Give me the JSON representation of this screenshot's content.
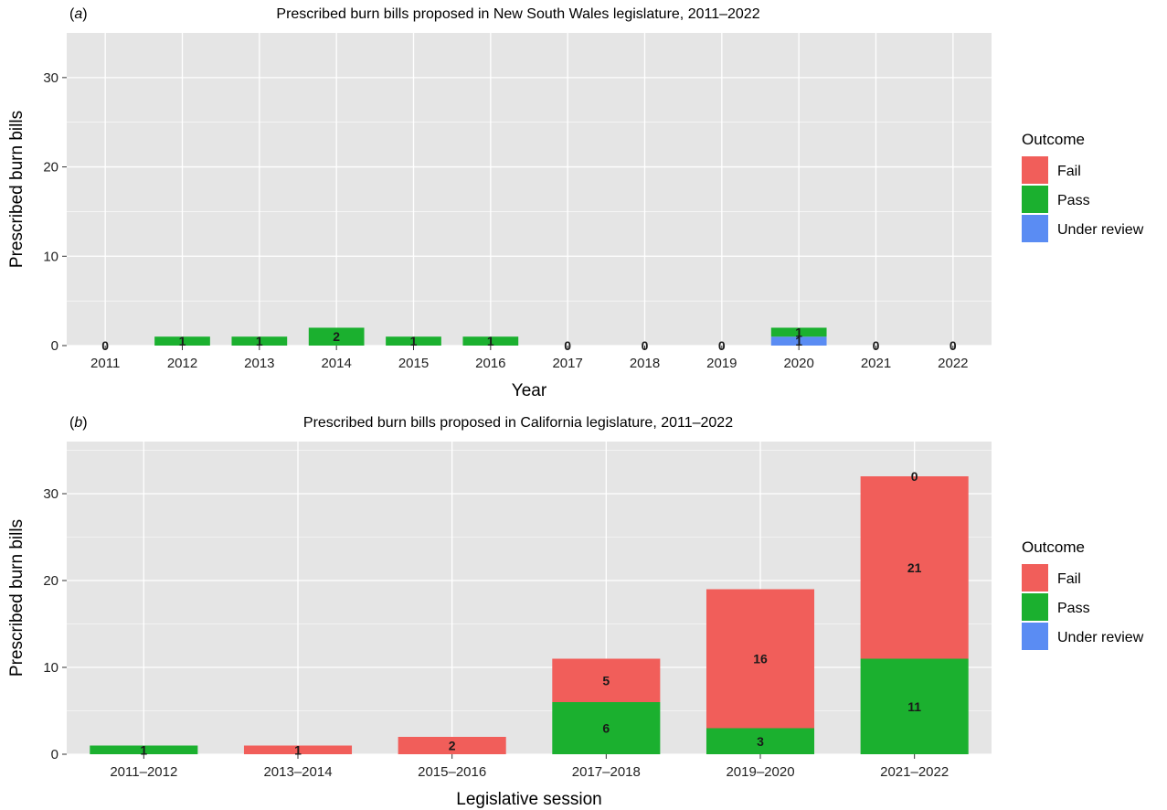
{
  "colors": {
    "panel_bg": "#e5e5e5",
    "grid": "#ffffff",
    "Fail": "#f15e5a",
    "Pass": "#1bb02f",
    "Under review": "#5a8cf3"
  },
  "chart_data": [
    {
      "type": "bar",
      "stacked": true,
      "panel_letter": "a",
      "title": "Prescribed burn bills proposed in New South Wales legislature, 2011–2022",
      "xlabel": "Year",
      "ylabel": "Prescribed burn bills",
      "ylim": [
        0,
        35
      ],
      "yticks": [
        0,
        10,
        20,
        30
      ],
      "grid": true,
      "legend": {
        "title": "Outcome",
        "position": "right",
        "entries": [
          "Fail",
          "Pass",
          "Under review"
        ]
      },
      "categories": [
        "2011",
        "2012",
        "2013",
        "2014",
        "2015",
        "2016",
        "2017",
        "2018",
        "2019",
        "2020",
        "2021",
        "2022"
      ],
      "series": [
        {
          "name": "Fail",
          "values": [
            0,
            0,
            0,
            0,
            0,
            0,
            0,
            0,
            0,
            0,
            0,
            0
          ]
        },
        {
          "name": "Pass",
          "values": [
            0,
            1,
            1,
            2,
            1,
            1,
            0,
            0,
            0,
            1,
            0,
            0
          ]
        },
        {
          "name": "Under review",
          "values": [
            0,
            0,
            0,
            0,
            0,
            0,
            0,
            0,
            0,
            1,
            0,
            0
          ]
        }
      ],
      "data_labels": [
        {
          "category": "2011",
          "text": "0",
          "y": 0
        },
        {
          "category": "2012",
          "text": "1",
          "y": 0.5
        },
        {
          "category": "2013",
          "text": "1",
          "y": 0.5
        },
        {
          "category": "2014",
          "text": "2",
          "y": 1
        },
        {
          "category": "2015",
          "text": "1",
          "y": 0.5
        },
        {
          "category": "2016",
          "text": "1",
          "y": 0.5
        },
        {
          "category": "2017",
          "text": "0",
          "y": 0
        },
        {
          "category": "2018",
          "text": "0",
          "y": 0
        },
        {
          "category": "2019",
          "text": "0",
          "y": 0
        },
        {
          "category": "2020",
          "text": "1",
          "y": 1.5
        },
        {
          "category": "2020",
          "text": "1",
          "y": 0.5
        },
        {
          "category": "2021",
          "text": "0",
          "y": 0
        },
        {
          "category": "2022",
          "text": "0",
          "y": 0
        }
      ]
    },
    {
      "type": "bar",
      "stacked": true,
      "panel_letter": "b",
      "title": "Prescribed burn bills proposed in California legislature, 2011–2022",
      "xlabel": "Legislative session",
      "ylabel": "Prescribed burn bills",
      "ylim": [
        0,
        36
      ],
      "yticks": [
        0,
        10,
        20,
        30
      ],
      "grid": true,
      "legend": {
        "title": "Outcome",
        "position": "right",
        "entries": [
          "Fail",
          "Pass",
          "Under review"
        ]
      },
      "categories": [
        "2011–2012",
        "2013–2014",
        "2015–2016",
        "2017–2018",
        "2019–2020",
        "2021–2022"
      ],
      "series": [
        {
          "name": "Fail",
          "values": [
            0,
            1,
            2,
            5,
            16,
            21
          ]
        },
        {
          "name": "Pass",
          "values": [
            1,
            0,
            0,
            6,
            3,
            11
          ]
        },
        {
          "name": "Under review",
          "values": [
            0,
            0,
            0,
            0,
            0,
            0
          ]
        }
      ],
      "data_labels": [
        {
          "category": "2011–2012",
          "text": "1",
          "y": 0.5
        },
        {
          "category": "2013–2014",
          "text": "1",
          "y": 0.5
        },
        {
          "category": "2015–2016",
          "text": "2",
          "y": 1
        },
        {
          "category": "2017–2018",
          "text": "6",
          "y": 3
        },
        {
          "category": "2017–2018",
          "text": "5",
          "y": 8.5
        },
        {
          "category": "2019–2020",
          "text": "3",
          "y": 1.5
        },
        {
          "category": "2019–2020",
          "text": "16",
          "y": 11
        },
        {
          "category": "2021–2022",
          "text": "11",
          "y": 5.5
        },
        {
          "category": "2021–2022",
          "text": "21",
          "y": 21.5
        },
        {
          "category": "2021–2022",
          "text": "0",
          "y": 32
        }
      ]
    }
  ]
}
